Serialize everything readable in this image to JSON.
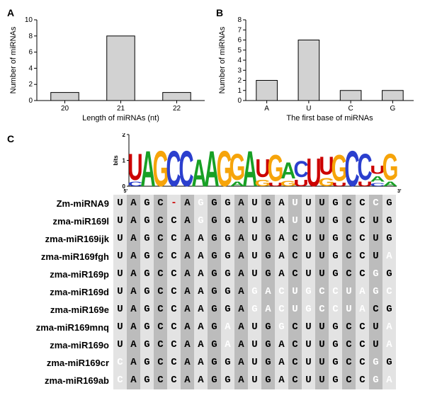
{
  "panelA": {
    "label": "A",
    "type": "bar",
    "categories": [
      "20",
      "21",
      "22"
    ],
    "values": [
      1,
      8,
      1
    ],
    "yticks": [
      0,
      2,
      4,
      6,
      8,
      10
    ],
    "ylim": [
      0,
      10
    ],
    "xlabel": "Length of miRNAs (nt)",
    "ylabel": "Number of miRNAs",
    "bar_color": "#d2d2d2",
    "bar_border": "#000000",
    "axis_color": "#000000",
    "bg_color": "#ffffff",
    "bar_width": 0.5,
    "label_fontsize": 11,
    "tick_fontsize": 10
  },
  "panelB": {
    "label": "B",
    "type": "bar",
    "categories": [
      "A",
      "U",
      "C",
      "G"
    ],
    "values": [
      2,
      6,
      1,
      1
    ],
    "yticks": [
      0,
      1,
      2,
      3,
      4,
      5,
      6,
      7,
      8
    ],
    "ylim": [
      0,
      8
    ],
    "xlabel": "The first base of miRNAs",
    "ylabel": "Number of miRNAs",
    "bar_color": "#d2d2d2",
    "bar_border": "#000000",
    "axis_color": "#000000",
    "bg_color": "#ffffff",
    "bar_width": 0.5,
    "label_fontsize": 11,
    "tick_fontsize": 10
  },
  "panelC": {
    "label": "C",
    "type": "sequence-logo-alignment",
    "logo": {
      "yticks": [
        "0",
        "1",
        "2"
      ],
      "ylabel": "bits",
      "num_positions": 21,
      "columns": [
        [
          {
            "l": "U",
            "h": 1.45,
            "c": "#cc0000"
          },
          {
            "l": "C",
            "h": 0.25,
            "c": "#2b3fce"
          }
        ],
        [
          {
            "l": "A",
            "h": 1.95,
            "c": "#18a025"
          }
        ],
        [
          {
            "l": "G",
            "h": 1.95,
            "c": "#f6a40a"
          }
        ],
        [
          {
            "l": "C",
            "h": 1.95,
            "c": "#2b3fce"
          }
        ],
        [
          {
            "l": "C",
            "h": 1.95,
            "c": "#2b3fce"
          }
        ],
        [
          {
            "l": "A",
            "h": 1.5,
            "c": "#18a025"
          }
        ],
        [
          {
            "l": "A",
            "h": 1.95,
            "c": "#18a025"
          }
        ],
        [
          {
            "l": "G",
            "h": 1.95,
            "c": "#f6a40a"
          }
        ],
        [
          {
            "l": "G",
            "h": 1.45,
            "c": "#f6a40a"
          },
          {
            "l": "A",
            "h": 0.25,
            "c": "#18a025"
          }
        ],
        [
          {
            "l": "A",
            "h": 1.95,
            "c": "#18a025"
          }
        ],
        [
          {
            "l": "U",
            "h": 1.0,
            "c": "#cc0000"
          },
          {
            "l": "G",
            "h": 0.35,
            "c": "#f6a40a"
          }
        ],
        [
          {
            "l": "G",
            "h": 1.45,
            "c": "#f6a40a"
          },
          {
            "l": "U",
            "h": 0.2,
            "c": "#cc0000"
          }
        ],
        [
          {
            "l": "A",
            "h": 0.9,
            "c": "#18a025"
          },
          {
            "l": "G",
            "h": 0.3,
            "c": "#f6a40a"
          }
        ],
        [
          {
            "l": "C",
            "h": 0.9,
            "c": "#2b3fce"
          },
          {
            "l": "U",
            "h": 0.35,
            "c": "#cc0000"
          }
        ],
        [
          {
            "l": "U",
            "h": 1.55,
            "c": "#cc0000"
          }
        ],
        [
          {
            "l": "U",
            "h": 1.0,
            "c": "#cc0000"
          },
          {
            "l": "G",
            "h": 0.45,
            "c": "#f6a40a"
          }
        ],
        [
          {
            "l": "G",
            "h": 1.45,
            "c": "#f6a40a"
          },
          {
            "l": "U",
            "h": 0.2,
            "c": "#cc0000"
          }
        ],
        [
          {
            "l": "C",
            "h": 1.95,
            "c": "#2b3fce"
          }
        ],
        [
          {
            "l": "C",
            "h": 1.45,
            "c": "#2b3fce"
          },
          {
            "l": "U",
            "h": 0.25,
            "c": "#cc0000"
          }
        ],
        [
          {
            "l": "U",
            "h": 0.45,
            "c": "#cc0000"
          },
          {
            "l": "A",
            "h": 0.3,
            "c": "#18a025"
          },
          {
            "l": "C",
            "h": 0.18,
            "c": "#2b3fce"
          }
        ],
        [
          {
            "l": "G",
            "h": 1.45,
            "c": "#f6a40a"
          },
          {
            "l": "A",
            "h": 0.25,
            "c": "#18a025"
          }
        ]
      ],
      "left_marker": "5'",
      "right_marker": "3'",
      "colors": {
        "A": "#18a025",
        "U": "#cc0000",
        "G": "#f6a40a",
        "C": "#2b3fce",
        "gap": "#cc0000"
      }
    },
    "alignment": {
      "row_labels": [
        "Zm-miRNA9",
        "zma-miR169l",
        "zma-miR169ijk",
        "zma-miR169fgh",
        "zma-miR169p",
        "zma-miR169d",
        "zma-miR169e",
        "zma-miR169mnq",
        "zma-miR169o",
        "zma-miR169cr",
        "zma-miR169ab"
      ],
      "row_label_fontsize": 13,
      "cell_fontsize": 14,
      "cell_font": "Courier",
      "stripe_colors": [
        "#e3e3e3",
        "#bcbcbc"
      ],
      "consensus_text_color": "#000000",
      "variant_text_color": "#ffffff",
      "gap_text_color": "#cc0000",
      "sequences": [
        [
          [
            "U",
            0
          ],
          [
            "A",
            0
          ],
          [
            "G",
            0
          ],
          [
            "C",
            0
          ],
          [
            "-",
            2
          ],
          [
            "A",
            0
          ],
          [
            "G",
            1
          ],
          [
            "G",
            0
          ],
          [
            "G",
            0
          ],
          [
            "A",
            0
          ],
          [
            "U",
            0
          ],
          [
            "G",
            0
          ],
          [
            "A",
            0
          ],
          [
            "U",
            1
          ],
          [
            "U",
            0
          ],
          [
            "U",
            0
          ],
          [
            "G",
            0
          ],
          [
            "C",
            0
          ],
          [
            "C",
            0
          ],
          [
            "C",
            1
          ],
          [
            "G",
            0
          ]
        ],
        [
          [
            "U",
            0
          ],
          [
            "A",
            0
          ],
          [
            "G",
            0
          ],
          [
            "C",
            0
          ],
          [
            "C",
            0
          ],
          [
            "A",
            0
          ],
          [
            "G",
            1
          ],
          [
            "G",
            0
          ],
          [
            "G",
            0
          ],
          [
            "A",
            0
          ],
          [
            "U",
            0
          ],
          [
            "G",
            0
          ],
          [
            "A",
            0
          ],
          [
            "U",
            1
          ],
          [
            "U",
            0
          ],
          [
            "U",
            0
          ],
          [
            "G",
            0
          ],
          [
            "C",
            0
          ],
          [
            "C",
            0
          ],
          [
            "U",
            0
          ],
          [
            "G",
            0
          ]
        ],
        [
          [
            "U",
            0
          ],
          [
            "A",
            0
          ],
          [
            "G",
            0
          ],
          [
            "C",
            0
          ],
          [
            "C",
            0
          ],
          [
            "A",
            0
          ],
          [
            "A",
            0
          ],
          [
            "G",
            0
          ],
          [
            "G",
            0
          ],
          [
            "A",
            0
          ],
          [
            "U",
            0
          ],
          [
            "G",
            0
          ],
          [
            "A",
            0
          ],
          [
            "C",
            0
          ],
          [
            "U",
            0
          ],
          [
            "U",
            0
          ],
          [
            "G",
            0
          ],
          [
            "C",
            0
          ],
          [
            "C",
            0
          ],
          [
            "U",
            0
          ],
          [
            "G",
            0
          ]
        ],
        [
          [
            "U",
            0
          ],
          [
            "A",
            0
          ],
          [
            "G",
            0
          ],
          [
            "C",
            0
          ],
          [
            "C",
            0
          ],
          [
            "A",
            0
          ],
          [
            "A",
            0
          ],
          [
            "G",
            0
          ],
          [
            "G",
            0
          ],
          [
            "A",
            0
          ],
          [
            "U",
            0
          ],
          [
            "G",
            0
          ],
          [
            "A",
            0
          ],
          [
            "C",
            0
          ],
          [
            "U",
            0
          ],
          [
            "U",
            0
          ],
          [
            "G",
            0
          ],
          [
            "C",
            0
          ],
          [
            "C",
            0
          ],
          [
            "U",
            0
          ],
          [
            "A",
            1
          ]
        ],
        [
          [
            "U",
            0
          ],
          [
            "A",
            0
          ],
          [
            "G",
            0
          ],
          [
            "C",
            0
          ],
          [
            "C",
            0
          ],
          [
            "A",
            0
          ],
          [
            "A",
            0
          ],
          [
            "G",
            0
          ],
          [
            "G",
            0
          ],
          [
            "A",
            0
          ],
          [
            "U",
            0
          ],
          [
            "G",
            0
          ],
          [
            "A",
            0
          ],
          [
            "C",
            0
          ],
          [
            "U",
            0
          ],
          [
            "U",
            0
          ],
          [
            "G",
            0
          ],
          [
            "C",
            0
          ],
          [
            "C",
            0
          ],
          [
            "G",
            1
          ],
          [
            "G",
            0
          ]
        ],
        [
          [
            "U",
            0
          ],
          [
            "A",
            0
          ],
          [
            "G",
            0
          ],
          [
            "C",
            0
          ],
          [
            "C",
            0
          ],
          [
            "A",
            0
          ],
          [
            "A",
            0
          ],
          [
            "G",
            0
          ],
          [
            "G",
            0
          ],
          [
            "A",
            0
          ],
          [
            "G",
            1
          ],
          [
            "A",
            1
          ],
          [
            "C",
            1
          ],
          [
            "U",
            1
          ],
          [
            "G",
            1
          ],
          [
            "C",
            1
          ],
          [
            "C",
            1
          ],
          [
            "U",
            1
          ],
          [
            "A",
            1
          ],
          [
            "G",
            1
          ],
          [
            "C",
            1
          ]
        ],
        [
          [
            "U",
            0
          ],
          [
            "A",
            0
          ],
          [
            "G",
            0
          ],
          [
            "C",
            0
          ],
          [
            "C",
            0
          ],
          [
            "A",
            0
          ],
          [
            "A",
            0
          ],
          [
            "G",
            0
          ],
          [
            "G",
            0
          ],
          [
            "A",
            0
          ],
          [
            "G",
            1
          ],
          [
            "A",
            1
          ],
          [
            "C",
            1
          ],
          [
            "U",
            1
          ],
          [
            "G",
            1
          ],
          [
            "C",
            1
          ],
          [
            "C",
            1
          ],
          [
            "U",
            1
          ],
          [
            "A",
            1
          ],
          [
            "C",
            0
          ],
          [
            "G",
            0
          ]
        ],
        [
          [
            "U",
            0
          ],
          [
            "A",
            0
          ],
          [
            "G",
            0
          ],
          [
            "C",
            0
          ],
          [
            "C",
            0
          ],
          [
            "A",
            0
          ],
          [
            "A",
            0
          ],
          [
            "G",
            0
          ],
          [
            "A",
            1
          ],
          [
            "A",
            0
          ],
          [
            "U",
            0
          ],
          [
            "G",
            0
          ],
          [
            "G",
            1
          ],
          [
            "C",
            0
          ],
          [
            "U",
            0
          ],
          [
            "U",
            0
          ],
          [
            "G",
            0
          ],
          [
            "C",
            0
          ],
          [
            "C",
            0
          ],
          [
            "U",
            0
          ],
          [
            "A",
            1
          ]
        ],
        [
          [
            "U",
            0
          ],
          [
            "A",
            0
          ],
          [
            "G",
            0
          ],
          [
            "C",
            0
          ],
          [
            "C",
            0
          ],
          [
            "A",
            0
          ],
          [
            "A",
            0
          ],
          [
            "G",
            0
          ],
          [
            "A",
            1
          ],
          [
            "A",
            0
          ],
          [
            "U",
            0
          ],
          [
            "G",
            0
          ],
          [
            "A",
            0
          ],
          [
            "C",
            0
          ],
          [
            "U",
            0
          ],
          [
            "U",
            0
          ],
          [
            "G",
            0
          ],
          [
            "C",
            0
          ],
          [
            "C",
            0
          ],
          [
            "U",
            0
          ],
          [
            "A",
            1
          ]
        ],
        [
          [
            "C",
            1
          ],
          [
            "A",
            0
          ],
          [
            "G",
            0
          ],
          [
            "C",
            0
          ],
          [
            "C",
            0
          ],
          [
            "A",
            0
          ],
          [
            "A",
            0
          ],
          [
            "G",
            0
          ],
          [
            "G",
            0
          ],
          [
            "A",
            0
          ],
          [
            "U",
            0
          ],
          [
            "G",
            0
          ],
          [
            "A",
            0
          ],
          [
            "C",
            0
          ],
          [
            "U",
            0
          ],
          [
            "U",
            0
          ],
          [
            "G",
            0
          ],
          [
            "C",
            0
          ],
          [
            "C",
            0
          ],
          [
            "G",
            1
          ],
          [
            "G",
            0
          ]
        ],
        [
          [
            "C",
            1
          ],
          [
            "A",
            0
          ],
          [
            "G",
            0
          ],
          [
            "C",
            0
          ],
          [
            "C",
            0
          ],
          [
            "A",
            0
          ],
          [
            "A",
            0
          ],
          [
            "G",
            0
          ],
          [
            "G",
            0
          ],
          [
            "A",
            0
          ],
          [
            "U",
            0
          ],
          [
            "G",
            0
          ],
          [
            "A",
            0
          ],
          [
            "C",
            0
          ],
          [
            "U",
            0
          ],
          [
            "U",
            0
          ],
          [
            "G",
            0
          ],
          [
            "C",
            0
          ],
          [
            "C",
            0
          ],
          [
            "G",
            1
          ],
          [
            "A",
            1
          ]
        ]
      ]
    }
  }
}
